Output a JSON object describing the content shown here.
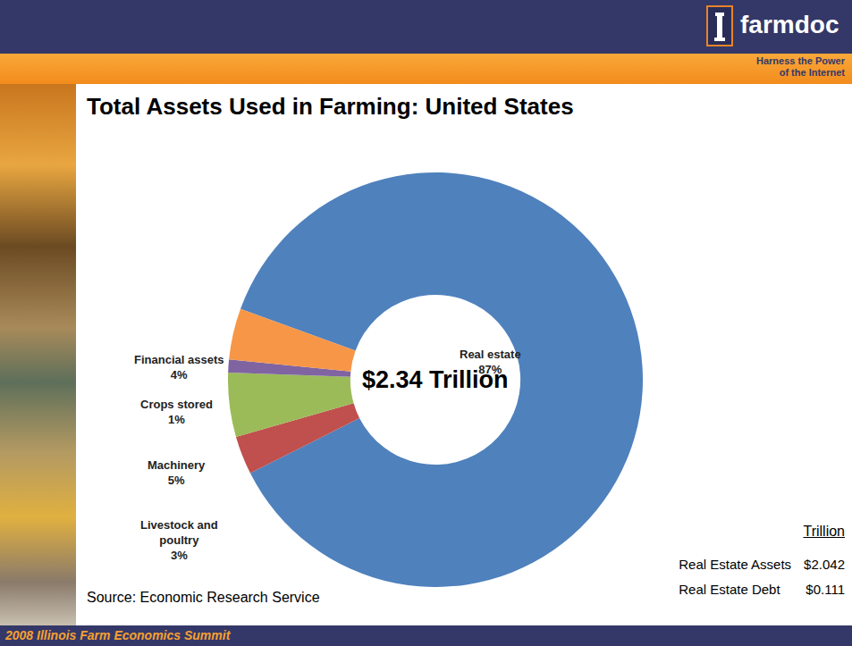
{
  "header": {
    "logo": "farmdoc",
    "tagline": "Harness the Power of the Internet"
  },
  "chart_data": {
    "type": "pie",
    "title": "Total Assets Used in Farming: United States",
    "categories": [
      "Real estate",
      "Livestock and poultry",
      "Machinery",
      "Crops stored",
      "Financial assets"
    ],
    "values": [
      87,
      3,
      5,
      1,
      4
    ],
    "value_labels": [
      "87%",
      "3%",
      "5%",
      "1%",
      "4%"
    ],
    "colors": [
      "#4f81bd",
      "#c0504d",
      "#9bbb59",
      "#8064a2",
      "#f79646"
    ],
    "annotations": [
      "$2.34 Trillion"
    ],
    "data_labels": true
  },
  "source": "Source: Economic Research Service",
  "table": {
    "header": "Trillion",
    "rows": [
      [
        "Real Estate Assets",
        "$2.042"
      ],
      [
        "Real Estate Debt",
        "$0.111"
      ]
    ]
  },
  "footer": "2008 Illinois Farm Economics Summit"
}
